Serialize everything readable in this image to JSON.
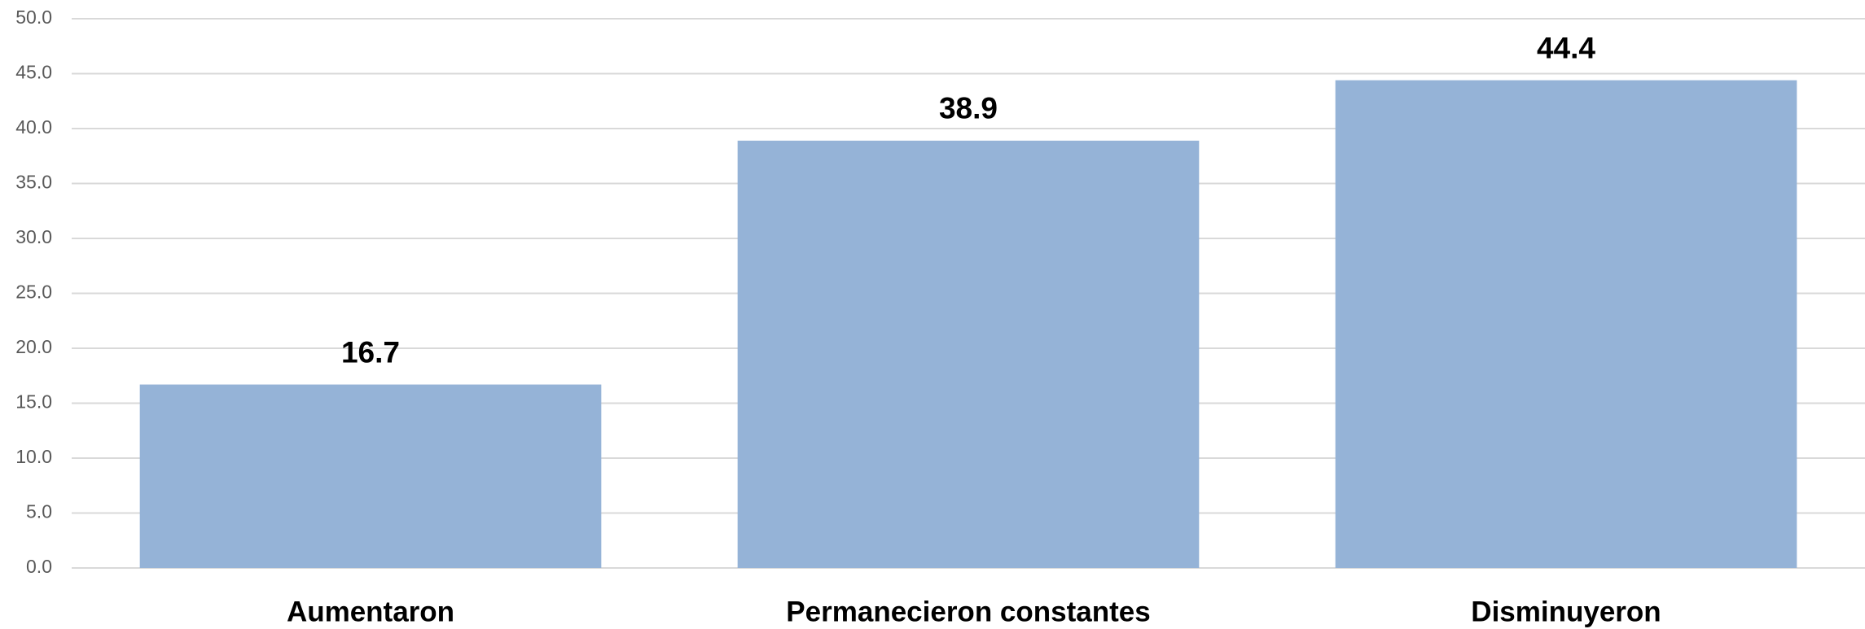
{
  "chart_data": {
    "type": "bar",
    "categories": [
      "Aumentaron",
      "Permanecieron constantes",
      "Disminuyeron"
    ],
    "values": [
      16.7,
      38.9,
      44.4
    ],
    "color": "#95b3d7",
    "ylim": [
      0,
      50
    ],
    "yticks": [
      {
        "value": 0,
        "label": "0.0"
      },
      {
        "value": 5,
        "label": "5.0"
      },
      {
        "value": 10,
        "label": "10.0"
      },
      {
        "value": 15,
        "label": "15.0"
      },
      {
        "value": 20,
        "label": "20.0"
      },
      {
        "value": 25,
        "label": "25.0"
      },
      {
        "value": 30,
        "label": "30.0"
      },
      {
        "value": 35,
        "label": "35.0"
      },
      {
        "value": 40,
        "label": "40.0"
      },
      {
        "value": 45,
        "label": "45.0"
      },
      {
        "value": 50,
        "label": "50.0"
      }
    ],
    "grid": true
  }
}
